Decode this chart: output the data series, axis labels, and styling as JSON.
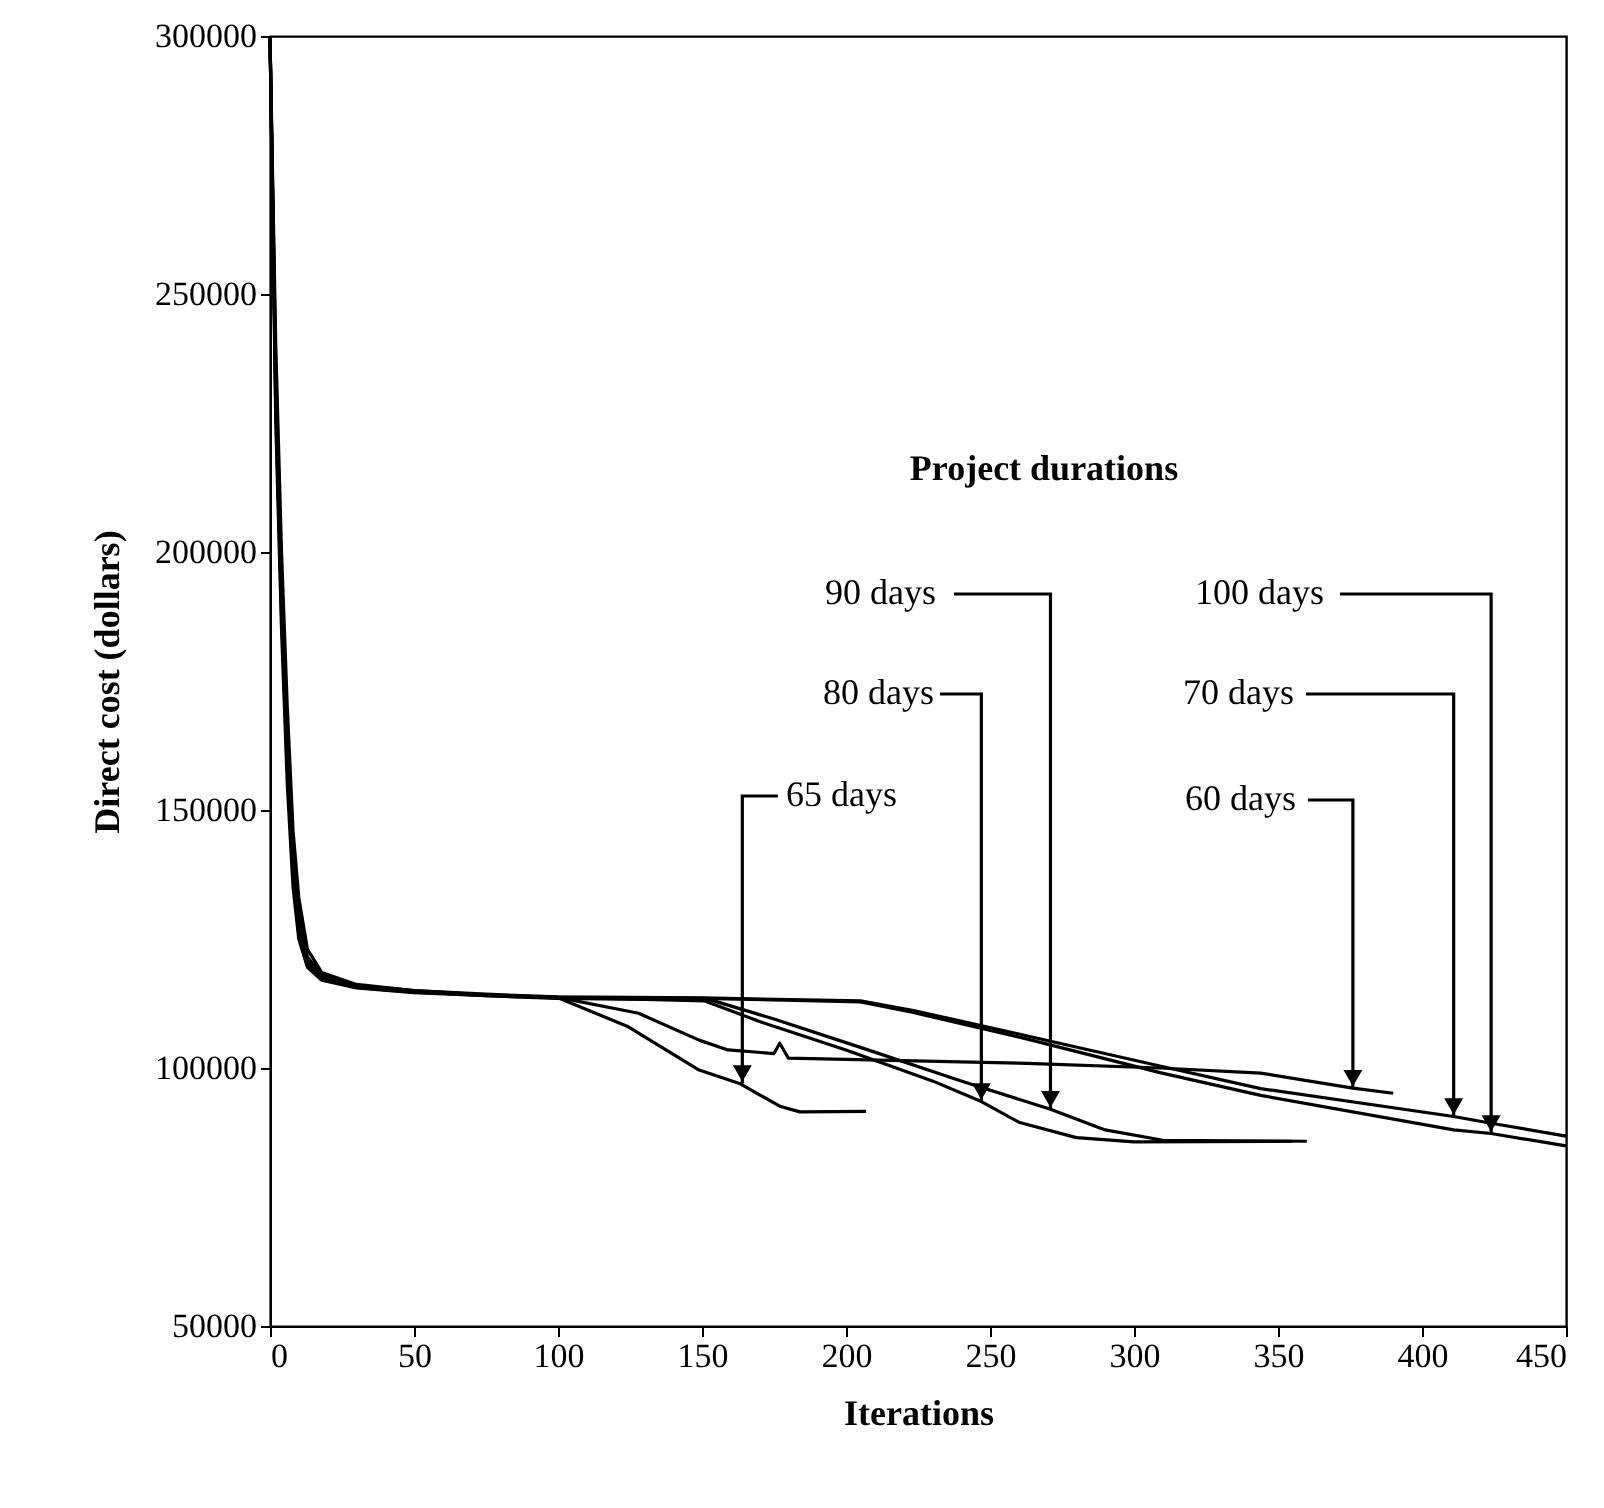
{
  "chart_data": {
    "type": "line",
    "xlabel": "Iterations",
    "ylabel": "Direct cost (dollars)",
    "xlim": [
      0,
      450
    ],
    "xticks": [
      0,
      50,
      100,
      150,
      200,
      250,
      300,
      350,
      400,
      450
    ],
    "ylim": [
      50000,
      300000
    ],
    "yticks": [
      50000,
      100000,
      150000,
      200000,
      250000,
      300000
    ],
    "grid": false,
    "series": [
      {
        "color": "#000000",
        "x": [
          0,
          2,
          4,
          6,
          8,
          10,
          13,
          18,
          30,
          50,
          75,
          100,
          124,
          149,
          163,
          177,
          184,
          207
        ],
        "values": [
          300000,
          225000,
          185000,
          155000,
          135000,
          125000,
          119500,
          117000,
          115500,
          114600,
          114000,
          113600,
          108100,
          99600,
          97000,
          92600,
          91500,
          91600
        ]
      },
      {
        "color": "#000000",
        "x": [
          0,
          2,
          4,
          6,
          8,
          10,
          13,
          18,
          30,
          50,
          75,
          100,
          130,
          151,
          170,
          200,
          230,
          247,
          260,
          280,
          300,
          355
        ],
        "values": [
          300000,
          230000,
          190000,
          160000,
          138000,
          127000,
          120000,
          117500,
          115800,
          114800,
          114000,
          113500,
          113300,
          113000,
          109000,
          103500,
          97500,
          93500,
          89500,
          86500,
          85700,
          85800
        ]
      },
      {
        "color": "#000000",
        "x": [
          0,
          2,
          4,
          6,
          8,
          10,
          13,
          18,
          30,
          50,
          75,
          100,
          130,
          153,
          175,
          205,
          240,
          271,
          290,
          310,
          360
        ],
        "values": [
          300000,
          235000,
          195000,
          165000,
          142000,
          130000,
          121500,
          118000,
          116000,
          115000,
          114200,
          113600,
          113400,
          113200,
          109500,
          104000,
          97500,
          92000,
          88000,
          86000,
          85800
        ]
      },
      {
        "color": "#000000",
        "x": [
          0,
          2,
          4,
          6,
          8,
          10,
          13,
          18,
          30,
          50,
          75,
          100,
          128,
          149,
          159,
          175,
          177,
          180,
          263,
          309,
          344,
          376,
          390
        ],
        "values": [
          300000,
          228000,
          188000,
          158000,
          137000,
          126000,
          120000,
          117200,
          115600,
          114700,
          114100,
          113700,
          110600,
          105400,
          103500,
          102800,
          104800,
          101900,
          100900,
          100000,
          99000,
          96100,
          95100
        ]
      },
      {
        "color": "#000000",
        "x": [
          0,
          2,
          4,
          6,
          8,
          10,
          13,
          18,
          30,
          50,
          75,
          100,
          150,
          205,
          223,
          263,
          309,
          344,
          411,
          424,
          450
        ],
        "values": [
          300000,
          240000,
          200000,
          170000,
          146000,
          133000,
          123000,
          118500,
          116200,
          115000,
          114300,
          113800,
          113600,
          113000,
          111200,
          106200,
          100400,
          96000,
          90600,
          89300,
          86800
        ]
      },
      {
        "color": "#000000",
        "x": [
          0,
          2,
          4,
          6,
          8,
          10,
          13,
          18,
          30,
          50,
          75,
          100,
          150,
          205,
          223,
          263,
          309,
          344,
          411,
          424,
          450
        ],
        "values": [
          300000,
          232000,
          192000,
          162000,
          140000,
          128000,
          120500,
          117800,
          115900,
          114900,
          114100,
          113700,
          113500,
          112800,
          110800,
          105600,
          99100,
          94700,
          88000,
          87300,
          84900
        ]
      }
    ],
    "annotations": [
      "Project durations",
      {
        "text": "90 days",
        "x": 271,
        "y": 92000
      },
      {
        "text": "100 days",
        "x": 424,
        "y": 87300
      },
      {
        "text": "80 days",
        "x": 247,
        "y": 93500
      },
      {
        "text": "70 days",
        "x": 411,
        "y": 90600
      },
      {
        "text": "65 days",
        "x": 164,
        "y": 97000
      },
      {
        "text": "60 days",
        "x": 376,
        "y": 96100
      }
    ]
  }
}
